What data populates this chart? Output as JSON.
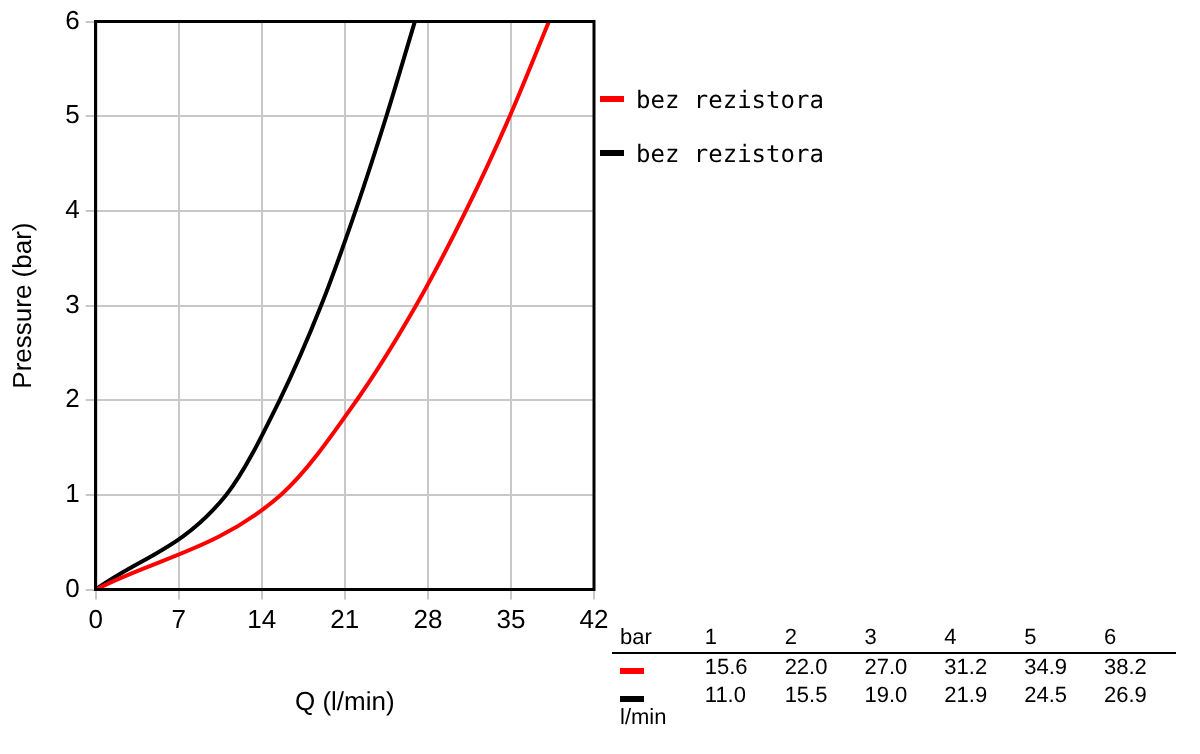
{
  "chart_data": {
    "type": "line",
    "xlabel": "Q (l/min)",
    "ylabel": "Pressure (bar)",
    "xlim": [
      0,
      42
    ],
    "xticks": [
      0,
      7,
      14,
      21,
      28,
      35,
      42
    ],
    "ylim": [
      0,
      6
    ],
    "yticks": [
      0,
      1,
      2,
      3,
      4,
      5,
      6
    ],
    "grid": true,
    "legend": "top right",
    "marker": "none",
    "line_style": "solid",
    "annotations": [
      "bar",
      "1",
      "2",
      "3",
      "4",
      "5",
      "6",
      "15.6",
      "22.0",
      "27.0",
      "31.2",
      "34.9",
      "38.2",
      "11.0",
      "15.5",
      "19.0",
      "21.9",
      "24.5",
      "26.9",
      "l/min"
    ],
    "series": [
      {
        "name": "bez rezistora",
        "color": "#ff0000",
        "x": [
          0,
          15.6,
          22.0,
          27.0,
          31.2,
          34.9,
          38.2
        ],
        "values": [
          0,
          1,
          2,
          3,
          4,
          5,
          6
        ]
      },
      {
        "name": "bez rezistora",
        "color": "#000000",
        "x": [
          0,
          11.0,
          15.5,
          19.0,
          21.9,
          24.5,
          26.9
        ],
        "values": [
          0,
          1,
          2,
          3,
          4,
          5,
          6
        ]
      }
    ]
  }
}
